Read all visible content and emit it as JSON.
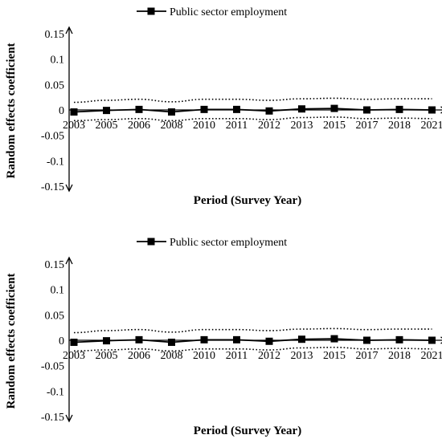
{
  "chart_data": [
    {
      "type": "line",
      "ylabel": "Random effects coefficient",
      "xlabel": "Period (Survey Year)",
      "ylim": [
        -0.15,
        0.15
      ],
      "y_ticks": [
        "0.15",
        "0.1",
        "0.05",
        "0",
        "-0.05",
        "-0.1",
        "-0.15"
      ],
      "categories": [
        "2003",
        "2005",
        "2006",
        "2008",
        "2010",
        "2011",
        "2012",
        "2013",
        "2015",
        "2017",
        "2018",
        "2021"
      ],
      "legend_position": "top",
      "series": [
        {
          "name": "Public sector employment",
          "style": "solid-square-markers",
          "color": "#000000",
          "values": [
            -0.004,
            -0.001,
            0.001,
            -0.004,
            0.001,
            0.001,
            -0.002,
            0.002,
            0.003,
            0.0,
            0.001,
            0.0
          ]
        },
        {
          "style": "dotted-upper-ci",
          "color": "#000000",
          "values": [
            0.015,
            0.019,
            0.021,
            0.016,
            0.021,
            0.021,
            0.019,
            0.022,
            0.023,
            0.021,
            0.022,
            0.022
          ]
        },
        {
          "style": "dotted-lower-ci",
          "color": "#000000",
          "values": [
            -0.021,
            -0.019,
            -0.017,
            -0.021,
            -0.017,
            -0.017,
            -0.019,
            -0.015,
            -0.014,
            -0.017,
            -0.016,
            -0.017
          ]
        }
      ]
    },
    {
      "type": "line",
      "ylabel": "Random effects coefficient",
      "xlabel": "Period (Survey Year)",
      "ylim": [
        -0.15,
        0.15
      ],
      "y_ticks": [
        "0.15",
        "0.1",
        "0.05",
        "0",
        "-0.05",
        "-0.1",
        "-0.15"
      ],
      "categories": [
        "2003",
        "2005",
        "2006",
        "2008",
        "2010",
        "2011",
        "2012",
        "2013",
        "2015",
        "2017",
        "2018",
        "2021"
      ],
      "legend_position": "top",
      "series": [
        {
          "name": "Public sector employment",
          "style": "solid-square-markers",
          "color": "#000000",
          "values": [
            -0.004,
            -0.001,
            0.001,
            -0.004,
            0.001,
            0.001,
            -0.002,
            0.002,
            0.003,
            0.0,
            0.001,
            0.0
          ]
        },
        {
          "style": "dotted-upper-ci",
          "color": "#000000",
          "values": [
            0.015,
            0.019,
            0.021,
            0.016,
            0.021,
            0.021,
            0.019,
            0.022,
            0.023,
            0.021,
            0.022,
            0.022
          ]
        },
        {
          "style": "dotted-lower-ci",
          "color": "#000000",
          "values": [
            -0.021,
            -0.019,
            -0.017,
            -0.021,
            -0.017,
            -0.017,
            -0.019,
            -0.015,
            -0.014,
            -0.017,
            -0.016,
            -0.017
          ]
        }
      ]
    }
  ]
}
